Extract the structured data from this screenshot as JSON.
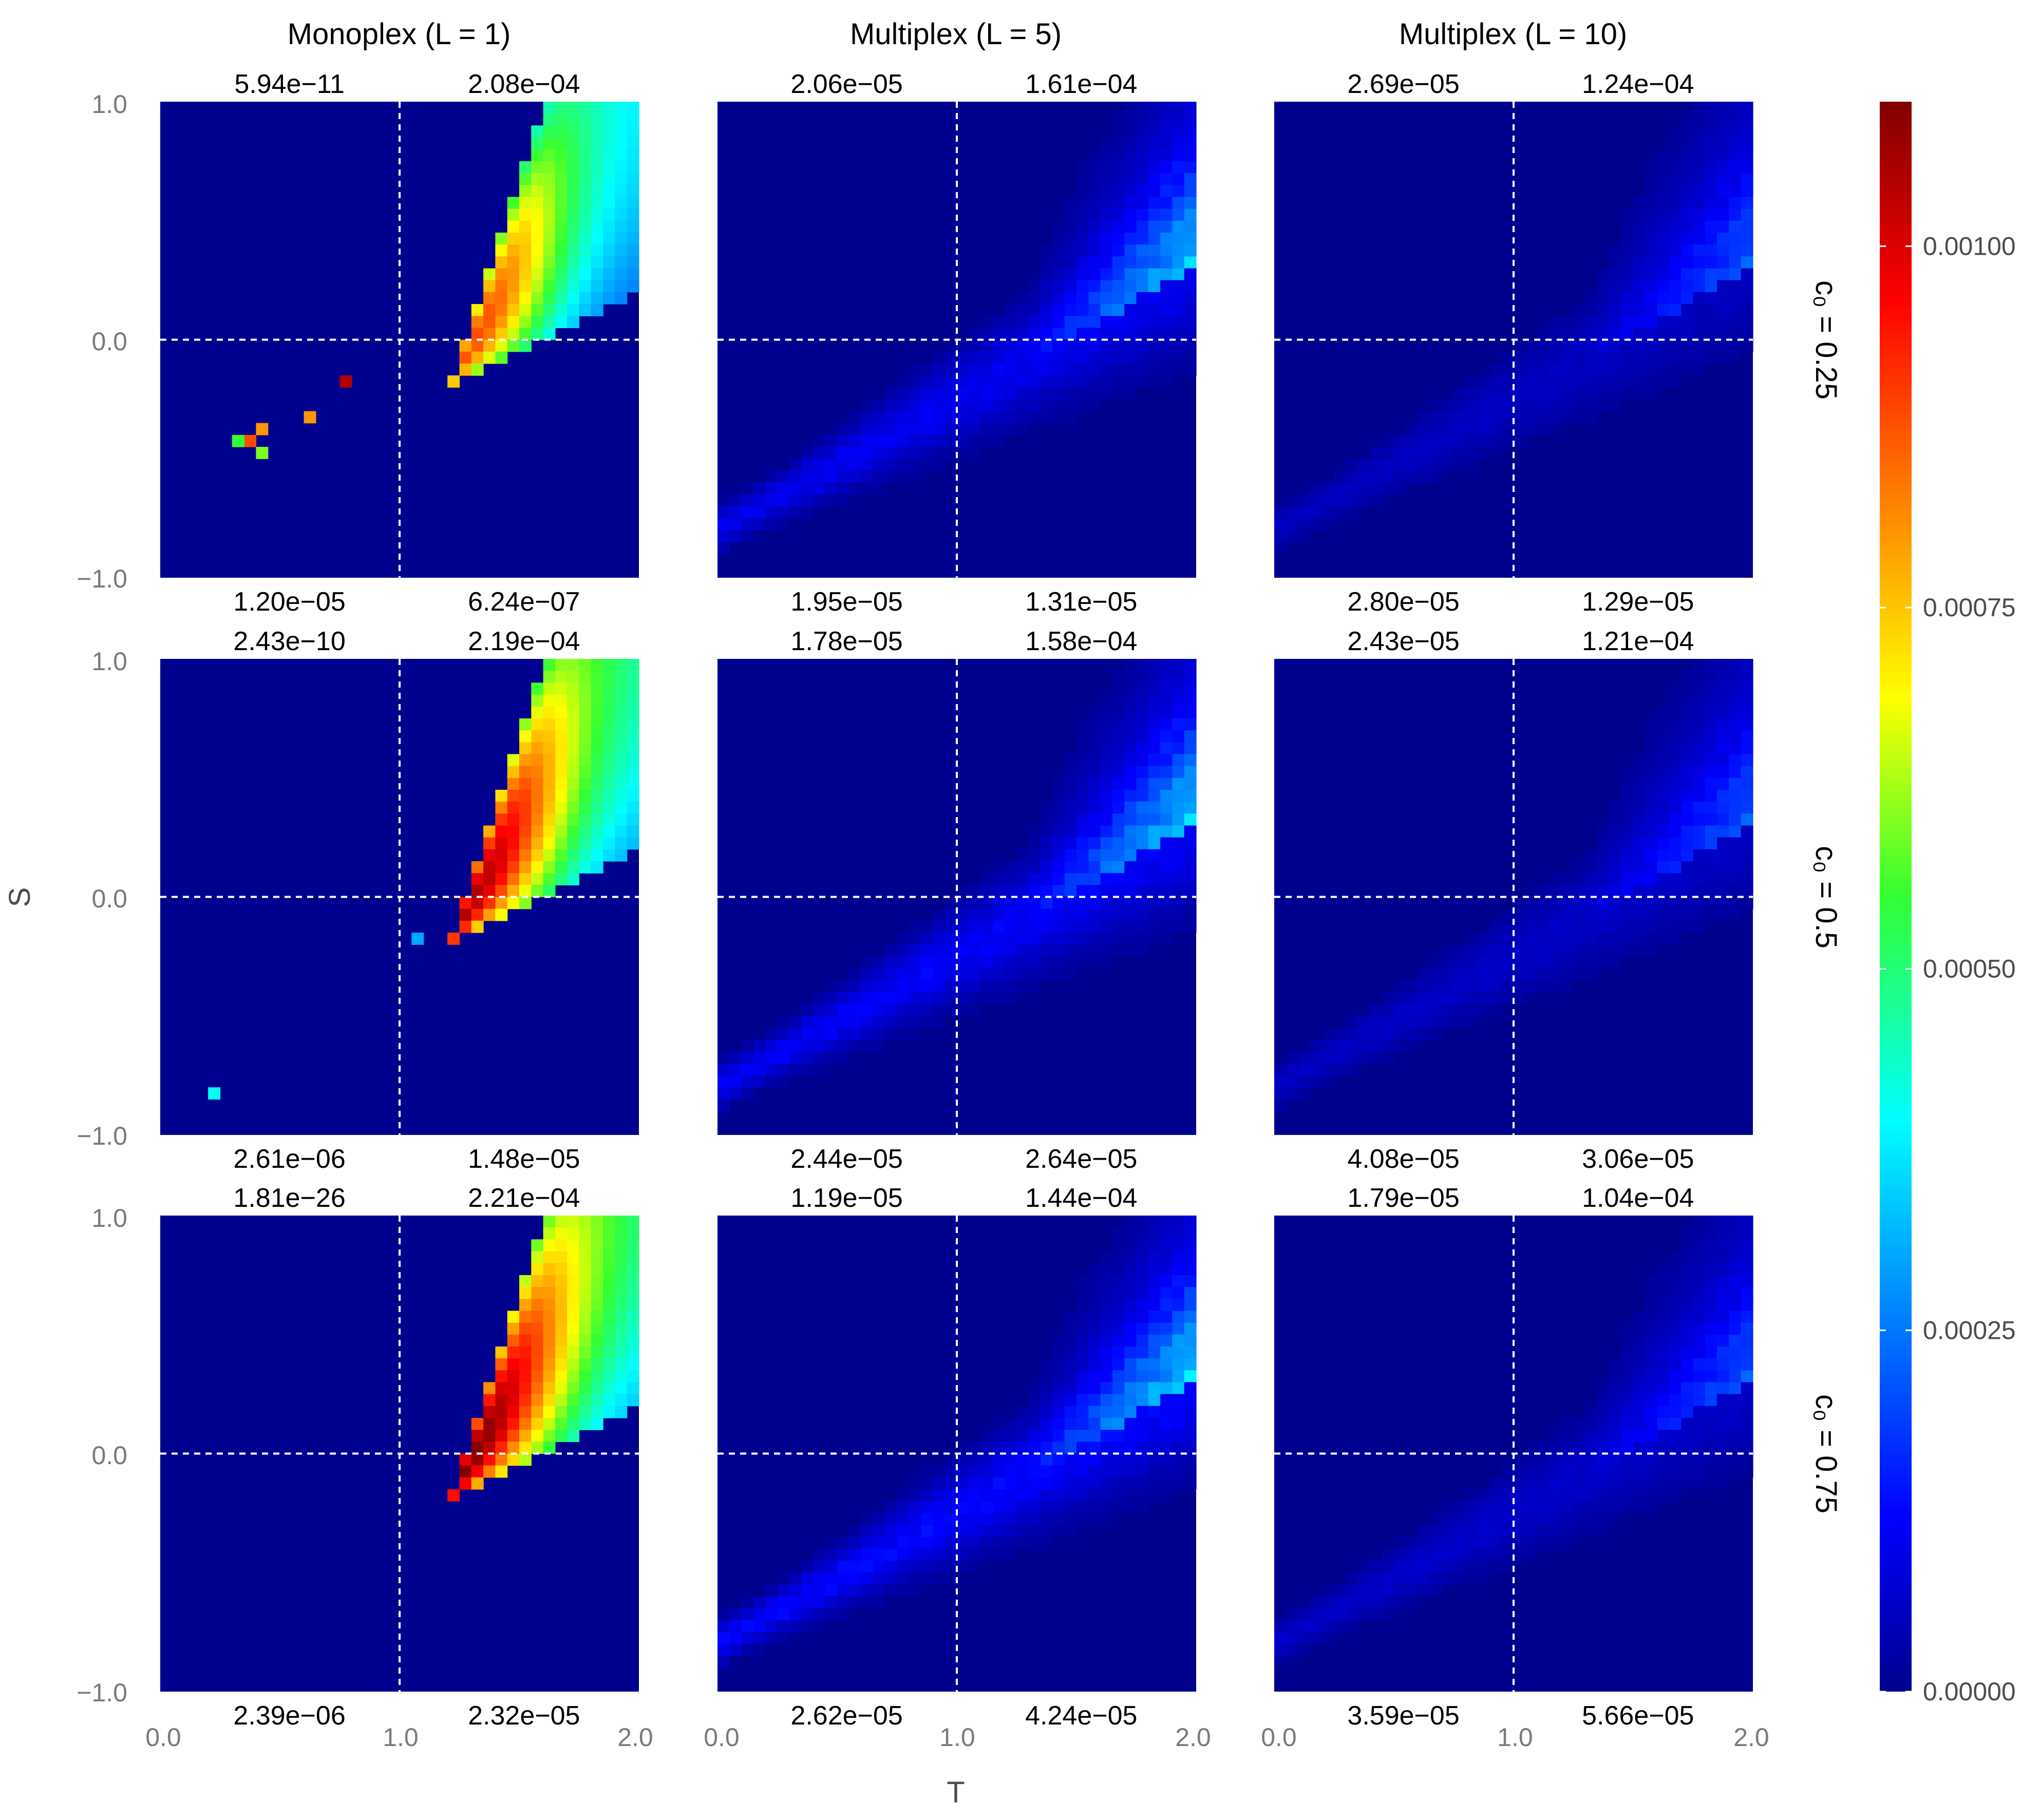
{
  "chart_data": {
    "type": "heatmap",
    "xlabel": "T",
    "ylabel": "S",
    "xlim": [
      0,
      2
    ],
    "ylim": [
      -1,
      1
    ],
    "x_ticks": [
      "0.0",
      "1.0",
      "2.0"
    ],
    "y_ticks": [
      "1.0",
      "0.0",
      "−1.0"
    ],
    "grid": false,
    "reference_lines": {
      "x": 1.0,
      "y": 0.0,
      "style": "white dashed"
    },
    "column_titles": [
      "Monoplex  (L = 1)",
      "Multiplex  (L = 5)",
      "Multiplex  (L = 10)"
    ],
    "row_titles": [
      "c₀ = 0.25",
      "c₀ = 0.5",
      "c₀ = 0.75"
    ],
    "colorbar": {
      "colormap": "jet",
      "range": [
        0,
        0.0011
      ],
      "ticks": [
        0.0,
        0.00025,
        0.0005,
        0.00075,
        0.001
      ],
      "tick_labels": [
        "0.00000",
        "0.00025",
        "0.00050",
        "0.00075",
        "0.00100"
      ],
      "placement": "right"
    },
    "panels": [
      {
        "row": 0,
        "col": 0,
        "mode": "mono",
        "spread": 0.75,
        "peak": 0.00088,
        "quadrant_values": {
          "top_left": "5.94e−11",
          "top_right": "2.08e−04",
          "bottom_left": "1.20e−05",
          "bottom_right": "6.24e−07"
        },
        "hotspots": [
          {
            "T": 0.75,
            "S": -0.19,
            "v": 0.00105
          },
          {
            "T": 0.6,
            "S": -0.34,
            "v": 0.0008
          },
          {
            "T": 0.42,
            "S": -0.39,
            "v": 0.0008
          },
          {
            "T": 0.37,
            "S": -0.44,
            "v": 0.00088
          },
          {
            "T": 0.32,
            "S": -0.44,
            "v": 0.00055
          },
          {
            "T": 0.42,
            "S": -0.49,
            "v": 0.0006
          }
        ]
      },
      {
        "row": 0,
        "col": 1,
        "mode": "multi",
        "spread": 0.55,
        "peak": 0.00038,
        "quadrant_values": {
          "top_left": "2.06e−05",
          "top_right": "1.61e−04",
          "bottom_left": "1.95e−05",
          "bottom_right": "1.31e−05"
        },
        "hotspots": []
      },
      {
        "row": 0,
        "col": 2,
        "mode": "multi",
        "spread": 0.4,
        "peak": 0.00027,
        "quadrant_values": {
          "top_left": "2.69e−05",
          "top_right": "1.24e−04",
          "bottom_left": "2.80e−05",
          "bottom_right": "1.29e−05"
        },
        "hotspots": []
      },
      {
        "row": 1,
        "col": 0,
        "mode": "mono",
        "spread": 0.9,
        "peak": 0.00105,
        "quadrant_values": {
          "top_left": "2.43e−10",
          "top_right": "2.19e−04",
          "bottom_left": "2.61e−06",
          "bottom_right": "1.48e−05"
        },
        "hotspots": [
          {
            "T": 0.2,
            "S": -0.84,
            "v": 0.0004
          },
          {
            "T": 1.05,
            "S": -0.19,
            "v": 0.0003
          }
        ]
      },
      {
        "row": 1,
        "col": 1,
        "mode": "multi",
        "spread": 0.6,
        "peak": 0.00038,
        "quadrant_values": {
          "top_left": "1.78e−05",
          "top_right": "1.58e−04",
          "bottom_left": "2.44e−05",
          "bottom_right": "2.64e−05"
        },
        "hotspots": []
      },
      {
        "row": 1,
        "col": 2,
        "mode": "multi",
        "spread": 0.45,
        "peak": 0.00026,
        "quadrant_values": {
          "top_left": "2.43e−05",
          "top_right": "1.21e−04",
          "bottom_left": "4.08e−05",
          "bottom_right": "3.06e−05"
        },
        "hotspots": []
      },
      {
        "row": 2,
        "col": 0,
        "mode": "mono",
        "spread": 1.0,
        "peak": 0.0011,
        "quadrant_values": {
          "top_left": "1.81e−26",
          "top_right": "2.21e−04",
          "bottom_left": "2.39e−06",
          "bottom_right": "2.32e−05"
        },
        "hotspots": []
      },
      {
        "row": 2,
        "col": 1,
        "mode": "multi",
        "spread": 0.65,
        "peak": 0.00038,
        "quadrant_values": {
          "top_left": "1.19e−05",
          "top_right": "1.44e−04",
          "bottom_left": "2.62e−05",
          "bottom_right": "4.24e−05"
        },
        "hotspots": []
      },
      {
        "row": 2,
        "col": 2,
        "mode": "multi",
        "spread": 0.5,
        "peak": 0.00025,
        "quadrant_values": {
          "top_left": "1.79e−05",
          "top_right": "1.04e−04",
          "bottom_left": "3.59e−05",
          "bottom_right": "5.66e−05"
        },
        "hotspots": []
      }
    ]
  }
}
